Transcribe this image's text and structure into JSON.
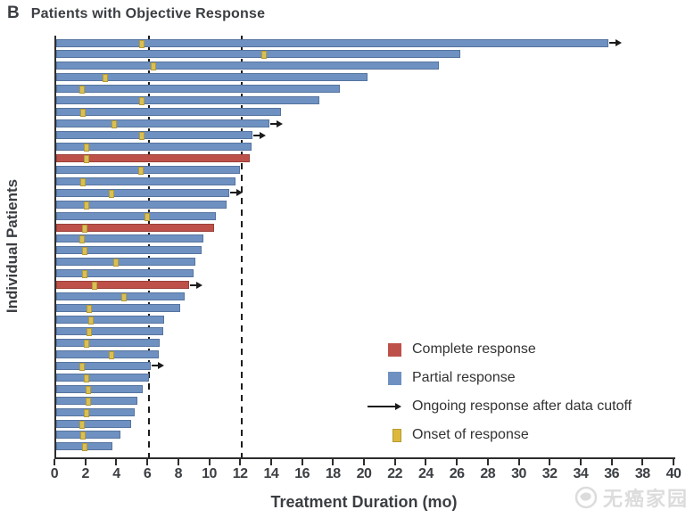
{
  "header": {
    "panel_label": "B",
    "title": "Patients with Objective Response"
  },
  "watermark": {
    "text": "无癌家园"
  },
  "chart_data": {
    "type": "bar",
    "orientation": "horizontal-swimmer",
    "title": "Patients with Objective Response",
    "xlabel": "Treatment Duration (mo)",
    "ylabel": "Individual Patients",
    "xlim": [
      0,
      40
    ],
    "x_tick_step": 2,
    "x_ticks": [
      0,
      2,
      4,
      6,
      8,
      10,
      12,
      14,
      16,
      18,
      20,
      22,
      24,
      26,
      28,
      30,
      32,
      34,
      36,
      38,
      40
    ],
    "reference_lines_mo": [
      6,
      12
    ],
    "grid": "off",
    "legend_position": "inside-lower-right",
    "legend": [
      {
        "id": "complete",
        "label": "Complete response",
        "color": "#bd5149"
      },
      {
        "id": "partial",
        "label": "Partial response",
        "color": "#6e91c2"
      },
      {
        "id": "ongoing",
        "label": "Ongoing response after data cutoff",
        "marker": "arrow",
        "color": "#1c1c1c"
      },
      {
        "id": "onset",
        "label": "Onset of response",
        "color": "#ddb83c"
      }
    ],
    "patients": [
      {
        "duration_mo": 35.7,
        "onset_mo": 5.5,
        "response": "partial",
        "ongoing": true
      },
      {
        "duration_mo": 26.1,
        "onset_mo": 13.4,
        "response": "partial",
        "ongoing": false
      },
      {
        "duration_mo": 24.7,
        "onset_mo": 6.2,
        "response": "partial",
        "ongoing": false
      },
      {
        "duration_mo": 20.1,
        "onset_mo": 3.1,
        "response": "partial",
        "ongoing": false
      },
      {
        "duration_mo": 18.3,
        "onset_mo": 1.6,
        "response": "partial",
        "ongoing": false
      },
      {
        "duration_mo": 17.0,
        "onset_mo": 5.5,
        "response": "partial",
        "ongoing": false
      },
      {
        "duration_mo": 14.5,
        "onset_mo": 1.7,
        "response": "partial",
        "ongoing": false
      },
      {
        "duration_mo": 13.8,
        "onset_mo": 3.7,
        "response": "partial",
        "ongoing": true
      },
      {
        "duration_mo": 12.7,
        "onset_mo": 5.5,
        "response": "partial",
        "ongoing": true
      },
      {
        "duration_mo": 12.6,
        "onset_mo": 1.9,
        "response": "partial",
        "ongoing": false
      },
      {
        "duration_mo": 12.5,
        "onset_mo": 1.9,
        "response": "complete",
        "ongoing": false
      },
      {
        "duration_mo": 11.9,
        "onset_mo": 5.4,
        "response": "partial",
        "ongoing": false
      },
      {
        "duration_mo": 11.6,
        "onset_mo": 1.7,
        "response": "partial",
        "ongoing": false
      },
      {
        "duration_mo": 11.2,
        "onset_mo": 3.5,
        "response": "partial",
        "ongoing": true
      },
      {
        "duration_mo": 11.0,
        "onset_mo": 1.9,
        "response": "partial",
        "ongoing": false
      },
      {
        "duration_mo": 10.3,
        "onset_mo": 5.8,
        "response": "partial",
        "ongoing": false
      },
      {
        "duration_mo": 10.2,
        "onset_mo": 1.8,
        "response": "complete",
        "ongoing": false
      },
      {
        "duration_mo": 9.5,
        "onset_mo": 1.6,
        "response": "partial",
        "ongoing": false
      },
      {
        "duration_mo": 9.4,
        "onset_mo": 1.8,
        "response": "partial",
        "ongoing": false
      },
      {
        "duration_mo": 9.0,
        "onset_mo": 3.8,
        "response": "partial",
        "ongoing": false
      },
      {
        "duration_mo": 8.9,
        "onset_mo": 1.8,
        "response": "partial",
        "ongoing": false
      },
      {
        "duration_mo": 8.6,
        "onset_mo": 2.4,
        "response": "complete",
        "ongoing": true
      },
      {
        "duration_mo": 8.3,
        "onset_mo": 4.3,
        "response": "partial",
        "ongoing": false
      },
      {
        "duration_mo": 8.0,
        "onset_mo": 2.1,
        "response": "partial",
        "ongoing": false
      },
      {
        "duration_mo": 7.0,
        "onset_mo": 2.2,
        "response": "partial",
        "ongoing": false
      },
      {
        "duration_mo": 6.9,
        "onset_mo": 2.1,
        "response": "partial",
        "ongoing": false
      },
      {
        "duration_mo": 6.7,
        "onset_mo": 1.9,
        "response": "partial",
        "ongoing": false
      },
      {
        "duration_mo": 6.6,
        "onset_mo": 3.5,
        "response": "partial",
        "ongoing": false
      },
      {
        "duration_mo": 6.1,
        "onset_mo": 1.6,
        "response": "partial",
        "ongoing": true
      },
      {
        "duration_mo": 6.0,
        "onset_mo": 1.9,
        "response": "partial",
        "ongoing": false
      },
      {
        "duration_mo": 5.6,
        "onset_mo": 2.0,
        "response": "partial",
        "ongoing": false
      },
      {
        "duration_mo": 5.25,
        "onset_mo": 2.0,
        "response": "partial",
        "ongoing": false
      },
      {
        "duration_mo": 5.1,
        "onset_mo": 1.9,
        "response": "partial",
        "ongoing": false
      },
      {
        "duration_mo": 4.85,
        "onset_mo": 1.6,
        "response": "partial",
        "ongoing": false
      },
      {
        "duration_mo": 4.15,
        "onset_mo": 1.7,
        "response": "partial",
        "ongoing": false
      },
      {
        "duration_mo": 3.65,
        "onset_mo": 1.8,
        "response": "partial",
        "ongoing": false
      }
    ]
  }
}
